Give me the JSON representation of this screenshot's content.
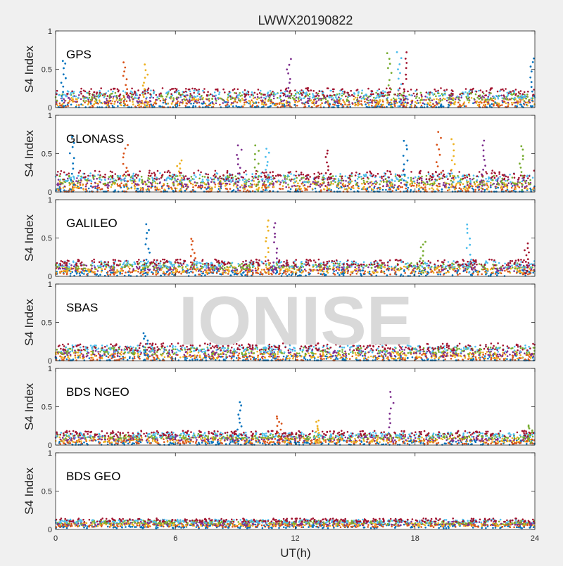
{
  "chart_data": {
    "type": "scatter",
    "title": "LWWX20190822",
    "xlabel": "UT(h)",
    "ylabel": "S4 Index",
    "xlim": [
      0,
      24
    ],
    "ylim": [
      0,
      1
    ],
    "x_ticks": [
      "0",
      "6",
      "12",
      "18",
      "24"
    ],
    "y_ticks": [
      "0",
      "0.5",
      "1"
    ],
    "grid": false,
    "watermark": "IONISE",
    "series_colors": [
      "#0072bd",
      "#d95319",
      "#edb120",
      "#7e2f8e",
      "#77ac30",
      "#4dbeee",
      "#a2142f"
    ],
    "panels": [
      {
        "label": "GPS",
        "baseline_range": [
          0.02,
          0.2
        ],
        "spikes": [
          {
            "x": 0.4,
            "y": 0.62
          },
          {
            "x": 3.5,
            "y": 0.58
          },
          {
            "x": 4.5,
            "y": 0.55
          },
          {
            "x": 11.7,
            "y": 0.62
          },
          {
            "x": 16.7,
            "y": 0.72
          },
          {
            "x": 17.2,
            "y": 0.72
          },
          {
            "x": 17.5,
            "y": 0.72
          },
          {
            "x": 23.9,
            "y": 0.65
          }
        ]
      },
      {
        "label": "GLONASS",
        "baseline_range": [
          0.02,
          0.22
        ],
        "spikes": [
          {
            "x": 0.8,
            "y": 0.72
          },
          {
            "x": 3.5,
            "y": 0.62
          },
          {
            "x": 6.2,
            "y": 0.42
          },
          {
            "x": 9.2,
            "y": 0.6
          },
          {
            "x": 10.1,
            "y": 0.6
          },
          {
            "x": 10.6,
            "y": 0.55
          },
          {
            "x": 13.6,
            "y": 0.55
          },
          {
            "x": 17.5,
            "y": 0.68
          },
          {
            "x": 19.2,
            "y": 0.77
          },
          {
            "x": 19.9,
            "y": 0.68
          },
          {
            "x": 21.4,
            "y": 0.68
          },
          {
            "x": 23.3,
            "y": 0.6
          }
        ]
      },
      {
        "label": "GALILEO",
        "baseline_range": [
          0.04,
          0.18
        ],
        "spikes": [
          {
            "x": 4.6,
            "y": 0.68
          },
          {
            "x": 6.9,
            "y": 0.5
          },
          {
            "x": 10.6,
            "y": 0.72
          },
          {
            "x": 11.0,
            "y": 0.7
          },
          {
            "x": 18.4,
            "y": 0.45
          },
          {
            "x": 20.7,
            "y": 0.68
          },
          {
            "x": 23.6,
            "y": 0.42
          }
        ]
      },
      {
        "label": "SBAS",
        "baseline_range": [
          0.02,
          0.18
        ],
        "spikes": [
          {
            "x": 4.5,
            "y": 0.35
          }
        ]
      },
      {
        "label": "BDS NGEO",
        "baseline_range": [
          0.03,
          0.15
        ],
        "spikes": [
          {
            "x": 9.2,
            "y": 0.56
          },
          {
            "x": 11.2,
            "y": 0.38
          },
          {
            "x": 13.1,
            "y": 0.32
          },
          {
            "x": 16.8,
            "y": 0.68
          },
          {
            "x": 23.8,
            "y": 0.25
          }
        ]
      },
      {
        "label": "BDS GEO",
        "baseline_range": [
          0.04,
          0.12
        ],
        "spikes": []
      }
    ]
  }
}
